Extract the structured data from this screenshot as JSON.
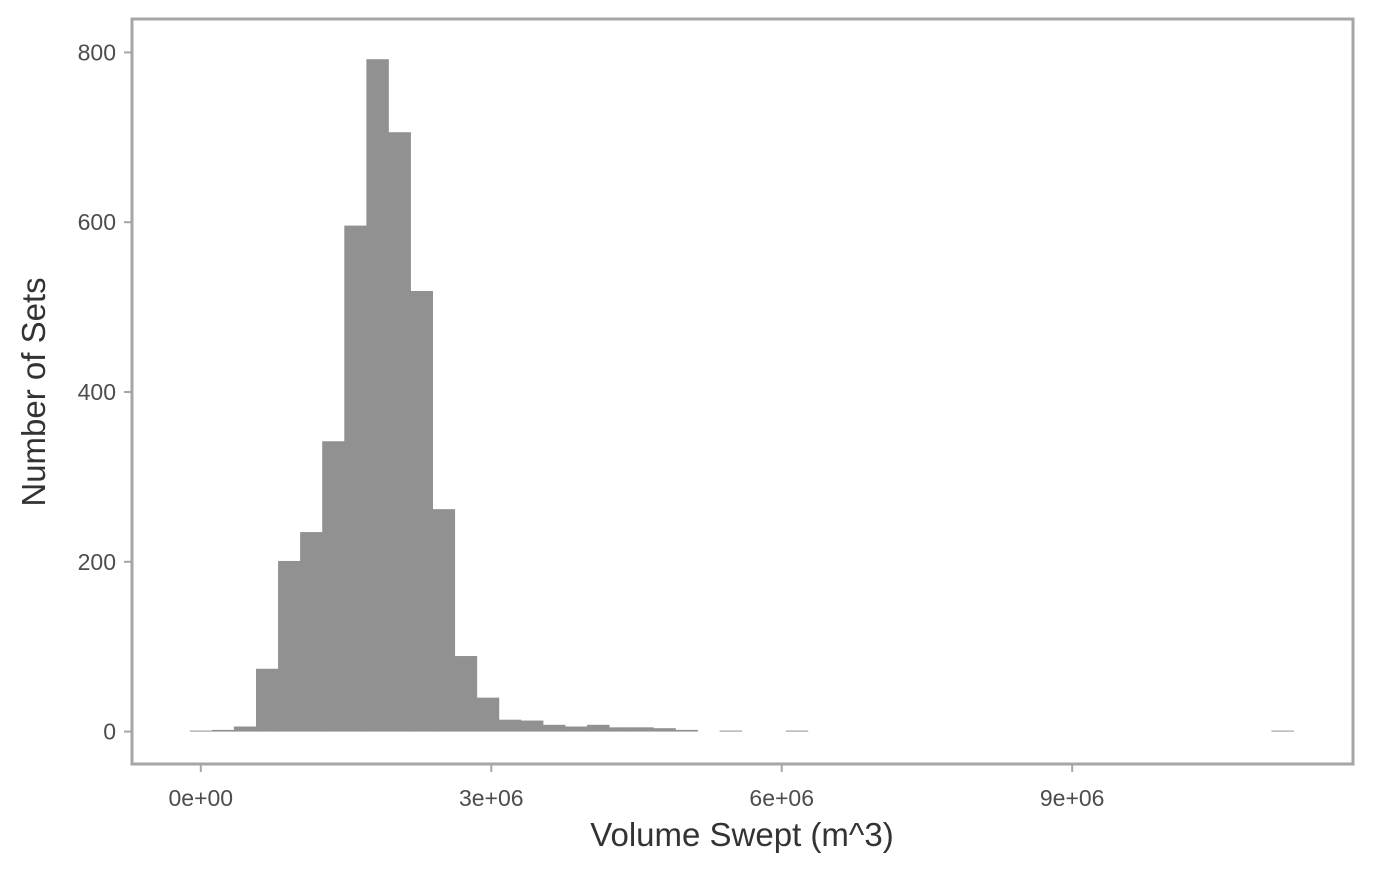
{
  "chart_data": {
    "type": "bar",
    "title": "",
    "xlabel": "Volume Swept (m^3)",
    "ylabel": "Number of Sets",
    "xlim": [
      -690000,
      11890000
    ],
    "ylim": [
      -37,
      837
    ],
    "grid": false,
    "x_ticks": [
      0,
      3000000,
      6000000,
      9000000
    ],
    "x_tick_labels": [
      "0e+00",
      "3e+06",
      "6e+06",
      "9e+06"
    ],
    "y_ticks": [
      0,
      200,
      400,
      600,
      800
    ],
    "y_tick_labels": [
      "0",
      "200",
      "400",
      "600",
      "800"
    ],
    "bin_width": 228000,
    "bins": [
      {
        "x0": -114000,
        "x1": 114000,
        "count": 0
      },
      {
        "x0": 114000,
        "x1": 342000,
        "count": 2
      },
      {
        "x0": 342000,
        "x1": 570000,
        "count": 6
      },
      {
        "x0": 570000,
        "x1": 798000,
        "count": 74
      },
      {
        "x0": 798000,
        "x1": 1026000,
        "count": 201
      },
      {
        "x0": 1026000,
        "x1": 1254000,
        "count": 235
      },
      {
        "x0": 1254000,
        "x1": 1482000,
        "count": 342
      },
      {
        "x0": 1482000,
        "x1": 1710000,
        "count": 596
      },
      {
        "x0": 1710000,
        "x1": 1938000,
        "count": 792
      },
      {
        "x0": 1938000,
        "x1": 2166000,
        "count": 706
      },
      {
        "x0": 2166000,
        "x1": 2394000,
        "count": 519
      },
      {
        "x0": 2394000,
        "x1": 2622000,
        "count": 262
      },
      {
        "x0": 2622000,
        "x1": 2850000,
        "count": 89
      },
      {
        "x0": 2850000,
        "x1": 3078000,
        "count": 40
      },
      {
        "x0": 3078000,
        "x1": 3306000,
        "count": 14
      },
      {
        "x0": 3306000,
        "x1": 3534000,
        "count": 13
      },
      {
        "x0": 3534000,
        "x1": 3762000,
        "count": 8
      },
      {
        "x0": 3762000,
        "x1": 3990000,
        "count": 6
      },
      {
        "x0": 3990000,
        "x1": 4218000,
        "count": 8
      },
      {
        "x0": 4218000,
        "x1": 4446000,
        "count": 5
      },
      {
        "x0": 4446000,
        "x1": 4674000,
        "count": 5
      },
      {
        "x0": 4674000,
        "x1": 4902000,
        "count": 4
      },
      {
        "x0": 4902000,
        "x1": 5130000,
        "count": 2
      },
      {
        "x0": 5358000,
        "x1": 5586000,
        "count": 1
      },
      {
        "x0": 6042000,
        "x1": 6270000,
        "count": 1
      },
      {
        "x0": 11058000,
        "x1": 11286000,
        "count": 1
      }
    ]
  }
}
